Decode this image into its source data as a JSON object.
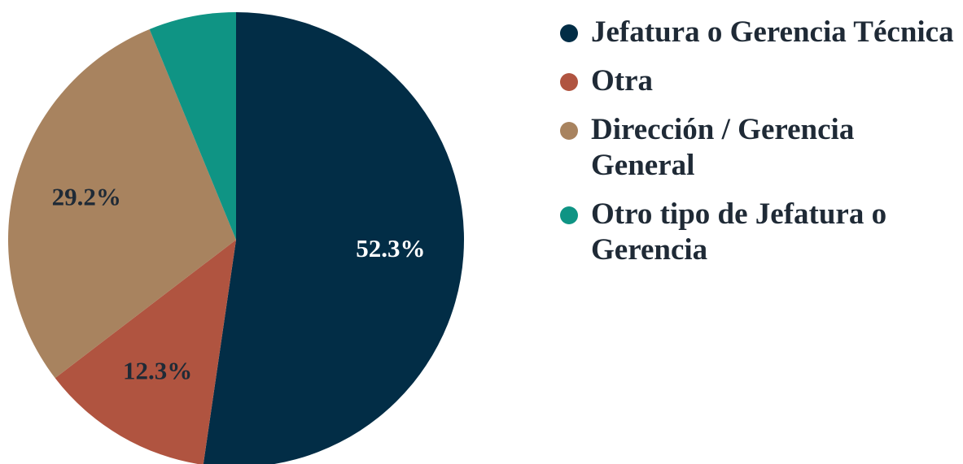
{
  "chart_data": {
    "type": "pie",
    "categories": [
      "Jefatura o Gerencia Técnica",
      "Otra",
      "Dirección / Gerencia General",
      "Otro tipo de Jefatura o Gerencia"
    ],
    "values": [
      52.3,
      12.3,
      29.2,
      6.2
    ],
    "value_labels": [
      "52.3%",
      "12.3%",
      "29.2%",
      null
    ],
    "colors": [
      "#022d46",
      "#b05440",
      "#a8835f",
      "#0f9484"
    ],
    "legend": "right"
  }
}
